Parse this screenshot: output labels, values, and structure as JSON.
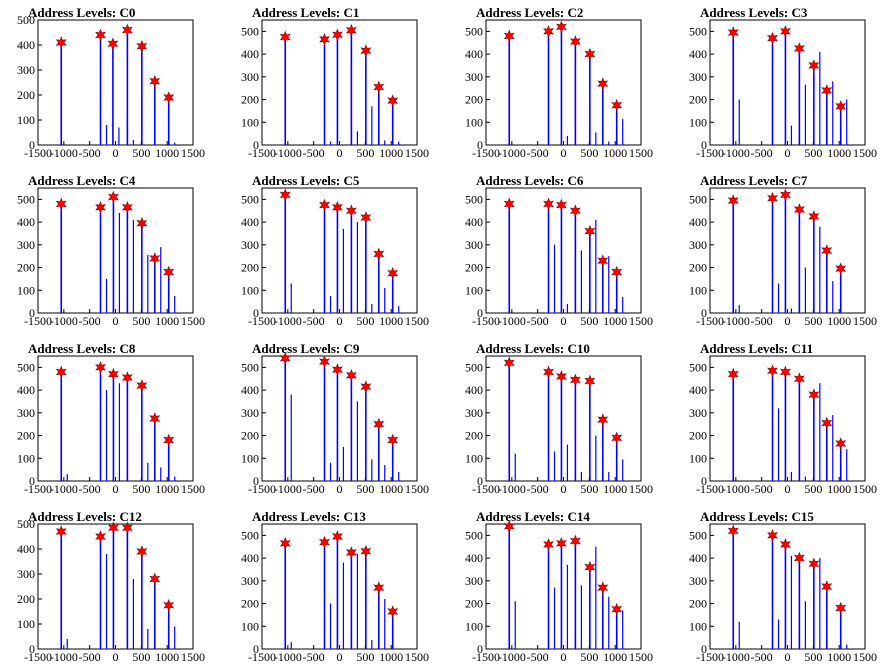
{
  "colors": {
    "bar": "#0000ff",
    "marker": "#ff0000",
    "axis": "#000000",
    "background": "#ffffff"
  },
  "chart_data": [
    {
      "type": "bar",
      "title": "Address Levels: C0",
      "xlim": [
        -1500,
        1500
      ],
      "ylim": [
        0,
        500
      ],
      "x_ticks": [
        "-1500",
        "-1000",
        "-500",
        "0",
        "500",
        "1000",
        "1500"
      ],
      "y_ticks": [
        "0",
        "100",
        "200",
        "300",
        "400",
        "500"
      ],
      "levels": [
        -1050,
        -290,
        -50,
        230,
        510,
        760,
        1030
      ],
      "peak_markers": [
        410,
        440,
        405,
        460,
        395,
        255,
        190
      ],
      "secondary_bars": [
        0,
        80,
        70,
        20,
        0,
        0,
        10
      ]
    },
    {
      "type": "bar",
      "title": "Address Levels: C1",
      "xlim": [
        -1500,
        1500
      ],
      "ylim": [
        0,
        550
      ],
      "x_ticks": [
        "-1500",
        "-1000",
        "-500",
        "0",
        "500",
        "1000",
        "1500"
      ],
      "y_ticks": [
        "0",
        "100",
        "200",
        "300",
        "400",
        "500"
      ],
      "levels": [
        -1050,
        -290,
        -40,
        230,
        510,
        760,
        1030
      ],
      "peak_markers": [
        475,
        465,
        485,
        505,
        415,
        255,
        195
      ],
      "secondary_bars": [
        0,
        15,
        0,
        60,
        170,
        20,
        15
      ]
    },
    {
      "type": "bar",
      "title": "Address Levels: C2",
      "xlim": [
        -1500,
        1500
      ],
      "ylim": [
        0,
        550
      ],
      "x_ticks": [
        "-1500",
        "-1000",
        "-500",
        "0",
        "500",
        "1000",
        "1500"
      ],
      "y_ticks": [
        "0",
        "100",
        "200",
        "300",
        "400",
        "500"
      ],
      "levels": [
        -1050,
        -290,
        -40,
        230,
        510,
        760,
        1030
      ],
      "peak_markers": [
        480,
        500,
        520,
        455,
        400,
        270,
        175
      ],
      "secondary_bars": [
        0,
        0,
        40,
        0,
        55,
        15,
        115
      ]
    },
    {
      "type": "bar",
      "title": "Address Levels: C3",
      "xlim": [
        -1500,
        1500
      ],
      "ylim": [
        0,
        550
      ],
      "x_ticks": [
        "-1500",
        "-1000",
        "-500",
        "0",
        "500",
        "1000",
        "1500"
      ],
      "y_ticks": [
        "0",
        "100",
        "200",
        "300",
        "400",
        "500"
      ],
      "levels": [
        -1050,
        -290,
        -40,
        230,
        510,
        760,
        1030
      ],
      "peak_markers": [
        495,
        470,
        500,
        425,
        350,
        240,
        170
      ],
      "secondary_bars": [
        200,
        0,
        85,
        265,
        410,
        280,
        200
      ]
    },
    {
      "type": "bar",
      "title": "Address Levels: C4",
      "xlim": [
        -1500,
        1500
      ],
      "ylim": [
        0,
        550
      ],
      "x_ticks": [
        "-1500",
        "-1000",
        "-500",
        "0",
        "500",
        "1000",
        "1500"
      ],
      "y_ticks": [
        "0",
        "100",
        "200",
        "300",
        "400",
        "500"
      ],
      "levels": [
        -1050,
        -290,
        -40,
        230,
        510,
        760,
        1030
      ],
      "peak_markers": [
        480,
        465,
        510,
        465,
        395,
        240,
        180
      ],
      "secondary_bars": [
        0,
        150,
        440,
        410,
        255,
        290,
        75
      ]
    },
    {
      "type": "bar",
      "title": "Address Levels: C5",
      "xlim": [
        -1500,
        1500
      ],
      "ylim": [
        0,
        550
      ],
      "x_ticks": [
        "-1500",
        "-1000",
        "-500",
        "0",
        "500",
        "1000",
        "1500"
      ],
      "y_ticks": [
        "0",
        "100",
        "200",
        "300",
        "400",
        "500"
      ],
      "levels": [
        -1050,
        -290,
        -40,
        230,
        510,
        760,
        1030
      ],
      "peak_markers": [
        520,
        475,
        465,
        450,
        420,
        260,
        175
      ],
      "secondary_bars": [
        130,
        75,
        370,
        400,
        40,
        110,
        30
      ]
    },
    {
      "type": "bar",
      "title": "Address Levels: C6",
      "xlim": [
        -1500,
        1500
      ],
      "ylim": [
        0,
        550
      ],
      "x_ticks": [
        "-1500",
        "-1000",
        "-500",
        "0",
        "500",
        "1000",
        "1500"
      ],
      "y_ticks": [
        "0",
        "100",
        "200",
        "300",
        "400",
        "500"
      ],
      "levels": [
        -1050,
        -290,
        -40,
        230,
        510,
        760,
        1030
      ],
      "peak_markers": [
        480,
        480,
        475,
        450,
        360,
        230,
        180
      ],
      "secondary_bars": [
        0,
        300,
        40,
        275,
        410,
        250,
        70
      ]
    },
    {
      "type": "bar",
      "title": "Address Levels: C7",
      "xlim": [
        -1500,
        1500
      ],
      "ylim": [
        0,
        550
      ],
      "x_ticks": [
        "-1500",
        "-1000",
        "-500",
        "0",
        "500",
        "1000",
        "1500"
      ],
      "y_ticks": [
        "0",
        "100",
        "200",
        "300",
        "400",
        "500"
      ],
      "levels": [
        -1050,
        -290,
        -40,
        230,
        510,
        760,
        1030
      ],
      "peak_markers": [
        495,
        505,
        520,
        455,
        425,
        275,
        195
      ],
      "secondary_bars": [
        35,
        130,
        20,
        200,
        380,
        140,
        0
      ]
    },
    {
      "type": "bar",
      "title": "Address Levels: C8",
      "xlim": [
        -1500,
        1500
      ],
      "ylim": [
        0,
        550
      ],
      "x_ticks": [
        "-1500",
        "-1000",
        "-500",
        "0",
        "500",
        "1000",
        "1500"
      ],
      "y_ticks": [
        "0",
        "100",
        "200",
        "300",
        "400",
        "500"
      ],
      "levels": [
        -1050,
        -290,
        -40,
        230,
        510,
        760,
        1030
      ],
      "peak_markers": [
        480,
        500,
        470,
        455,
        420,
        275,
        180
      ],
      "secondary_bars": [
        30,
        400,
        430,
        0,
        80,
        60,
        20
      ]
    },
    {
      "type": "bar",
      "title": "Address Levels: C9",
      "xlim": [
        -1500,
        1500
      ],
      "ylim": [
        0,
        550
      ],
      "x_ticks": [
        "-1500",
        "-1000",
        "-500",
        "0",
        "500",
        "1000",
        "1500"
      ],
      "y_ticks": [
        "0",
        "100",
        "200",
        "300",
        "400",
        "500"
      ],
      "levels": [
        -1050,
        -290,
        -40,
        230,
        510,
        760,
        1030
      ],
      "peak_markers": [
        540,
        525,
        490,
        465,
        415,
        250,
        180
      ],
      "secondary_bars": [
        380,
        80,
        150,
        350,
        95,
        70,
        40
      ]
    },
    {
      "type": "bar",
      "title": "Address Levels: C10",
      "xlim": [
        -1500,
        1500
      ],
      "ylim": [
        0,
        550
      ],
      "x_ticks": [
        "-1500",
        "-1000",
        "-500",
        "0",
        "500",
        "1000",
        "1500"
      ],
      "y_ticks": [
        "0",
        "100",
        "200",
        "300",
        "400",
        "500"
      ],
      "levels": [
        -1050,
        -290,
        -40,
        230,
        510,
        760,
        1030
      ],
      "peak_markers": [
        520,
        480,
        460,
        445,
        440,
        270,
        190
      ],
      "secondary_bars": [
        120,
        130,
        160,
        40,
        200,
        40,
        95
      ]
    },
    {
      "type": "bar",
      "title": "Address Levels: C11",
      "xlim": [
        -1500,
        1500
      ],
      "ylim": [
        0,
        550
      ],
      "x_ticks": [
        "-1500",
        "-1000",
        "-500",
        "0",
        "500",
        "1000",
        "1500"
      ],
      "y_ticks": [
        "0",
        "100",
        "200",
        "300",
        "400",
        "500"
      ],
      "levels": [
        -1050,
        -290,
        -40,
        230,
        510,
        760,
        1030
      ],
      "peak_markers": [
        470,
        485,
        480,
        450,
        380,
        255,
        165
      ],
      "secondary_bars": [
        0,
        320,
        40,
        20,
        430,
        290,
        140
      ]
    },
    {
      "type": "bar",
      "title": "Address Levels: C12",
      "xlim": [
        -1500,
        1500
      ],
      "ylim": [
        0,
        500
      ],
      "x_ticks": [
        "-1500",
        "-1000",
        "-500",
        "0",
        "500",
        "1000",
        "1500"
      ],
      "y_ticks": [
        "0",
        "100",
        "200",
        "300",
        "400",
        "500"
      ],
      "levels": [
        -1050,
        -290,
        -40,
        230,
        510,
        760,
        1030
      ],
      "peak_markers": [
        470,
        450,
        485,
        485,
        390,
        280,
        175
      ],
      "secondary_bars": [
        40,
        380,
        0,
        280,
        80,
        0,
        90
      ]
    },
    {
      "type": "bar",
      "title": "Address Levels: C13",
      "xlim": [
        -1500,
        1500
      ],
      "ylim": [
        0,
        550
      ],
      "x_ticks": [
        "-1500",
        "-1000",
        "-500",
        "0",
        "500",
        "1000",
        "1500"
      ],
      "y_ticks": [
        "0",
        "100",
        "200",
        "300",
        "400",
        "500"
      ],
      "levels": [
        -1050,
        -290,
        -40,
        230,
        510,
        760,
        1030
      ],
      "peak_markers": [
        465,
        470,
        495,
        425,
        430,
        270,
        165
      ],
      "secondary_bars": [
        30,
        200,
        380,
        420,
        40,
        220,
        0
      ]
    },
    {
      "type": "bar",
      "title": "Address Levels: C14",
      "xlim": [
        -1500,
        1500
      ],
      "ylim": [
        0,
        550
      ],
      "x_ticks": [
        "-1500",
        "-1000",
        "-500",
        "0",
        "500",
        "1000",
        "1500"
      ],
      "y_ticks": [
        "0",
        "100",
        "200",
        "300",
        "400",
        "500"
      ],
      "levels": [
        -1050,
        -290,
        -40,
        230,
        510,
        760,
        1030
      ],
      "peak_markers": [
        540,
        460,
        465,
        475,
        360,
        270,
        175
      ],
      "secondary_bars": [
        210,
        270,
        370,
        280,
        450,
        230,
        170
      ]
    },
    {
      "type": "bar",
      "title": "Address Levels: C15",
      "xlim": [
        -1500,
        1500
      ],
      "ylim": [
        0,
        550
      ],
      "x_ticks": [
        "-1500",
        "-1000",
        "-500",
        "0",
        "500",
        "1000",
        "1500"
      ],
      "y_ticks": [
        "0",
        "100",
        "200",
        "300",
        "400",
        "500"
      ],
      "levels": [
        -1050,
        -290,
        -40,
        230,
        510,
        760,
        1030
      ],
      "peak_markers": [
        520,
        500,
        460,
        400,
        375,
        275,
        180
      ],
      "secondary_bars": [
        120,
        130,
        410,
        210,
        400,
        0,
        20
      ]
    }
  ]
}
